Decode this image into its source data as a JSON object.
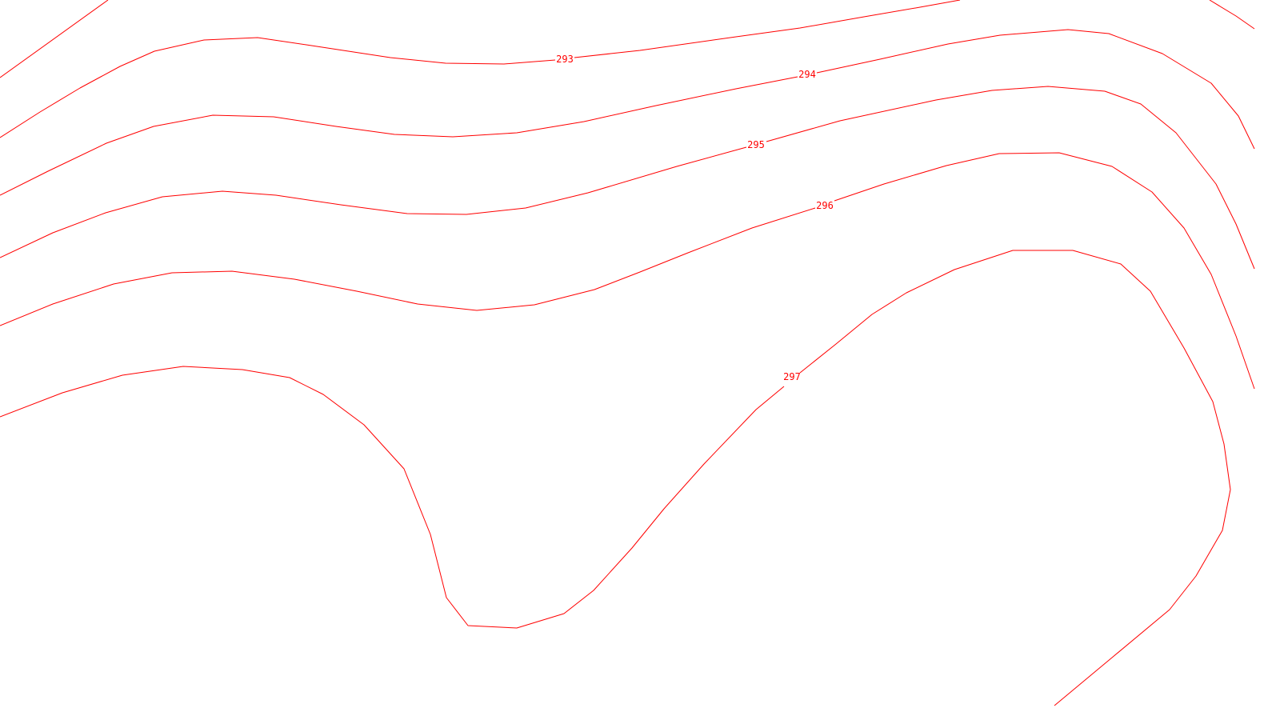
{
  "map": {
    "line_color": "#ff0000",
    "background_color": "#ffffff",
    "contours": [
      {
        "label": "293"
      },
      {
        "label": "294"
      },
      {
        "label": "295"
      },
      {
        "label": "296"
      },
      {
        "label": "297"
      }
    ]
  }
}
